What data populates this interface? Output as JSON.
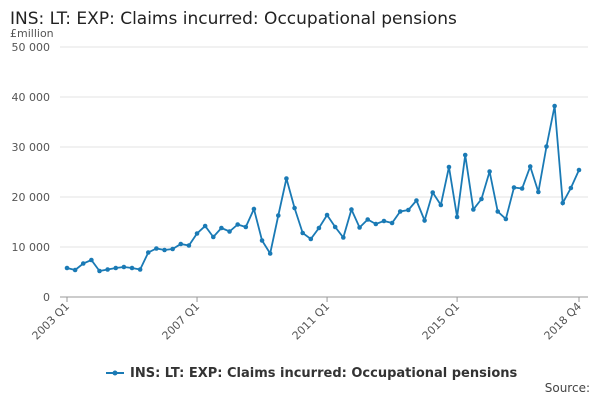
{
  "chart_data": {
    "type": "line",
    "title": "INS: LT: EXP: Claims incurred: Occupational pensions",
    "y_label": "£million",
    "source": "Source:",
    "categories": [
      "2003 Q1",
      null,
      null,
      null,
      null,
      null,
      null,
      null,
      null,
      null,
      null,
      null,
      null,
      null,
      null,
      null,
      "2007 Q1",
      null,
      null,
      null,
      null,
      null,
      null,
      null,
      null,
      null,
      null,
      null,
      null,
      null,
      null,
      null,
      "2011 Q1",
      null,
      null,
      null,
      null,
      null,
      null,
      null,
      null,
      null,
      null,
      null,
      null,
      null,
      null,
      null,
      "2015 Q1",
      null,
      null,
      null,
      null,
      null,
      null,
      null,
      null,
      null,
      null,
      null,
      null,
      null,
      null,
      "2018 Q4"
    ],
    "series": [
      {
        "name": "INS: LT: EXP: Claims incurred: Occupational pensions",
        "color": "#1a7ab5",
        "values": [
          5800,
          5400,
          6700,
          7400,
          5200,
          5500,
          5800,
          6000,
          5800,
          5500,
          8900,
          9700,
          9400,
          9600,
          10600,
          10300,
          12700,
          14200,
          12000,
          13800,
          13100,
          14500,
          14000,
          17600,
          11300,
          8700,
          16300,
          23700,
          17800,
          12800,
          11600,
          13800,
          16400,
          14000,
          11900,
          17500,
          13900,
          15500,
          14600,
          15200,
          14800,
          17100,
          17400,
          19300,
          15300,
          20900,
          18400,
          26000,
          16000,
          28400,
          17500,
          19600,
          25100,
          17100,
          15600,
          21900,
          21700,
          26100,
          21000,
          30100,
          38200,
          18800,
          21800,
          25400
        ]
      }
    ],
    "ylim": [
      0,
      50000
    ],
    "yticks": [
      0,
      {
        "value": 10000,
        "label": "10 000"
      },
      {
        "value": 20000,
        "label": "20 000"
      },
      {
        "value": 30000,
        "label": "30 000"
      },
      {
        "value": 40000,
        "label": "40 000"
      },
      {
        "value": 50000,
        "label": "50 000"
      }
    ],
    "grid": true,
    "legend": "bottom"
  }
}
